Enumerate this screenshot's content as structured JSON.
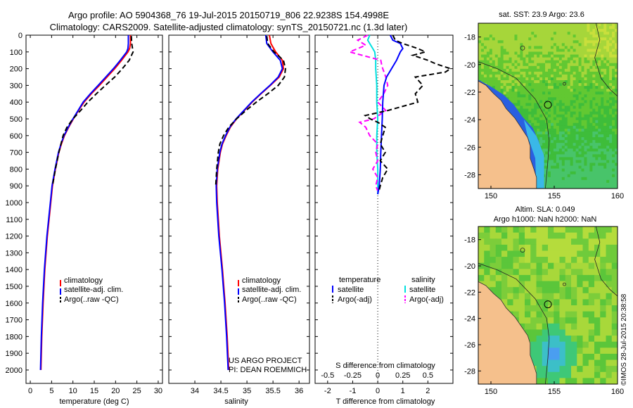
{
  "header": {
    "line1": "Argo profile: AO 5904368_76 19-Jul-2015 20150719_806 22.9238S 154.4998E",
    "line2": "Climatology: CARS2009. Satellite-adjusted climatology: synTS_20150721.nc (1.3d later)"
  },
  "side_note": "©IMOS 28-Jul-2015 20:38:58",
  "colors": {
    "clim": "#ff0000",
    "sat": "#0000ff",
    "argo": "#000000",
    "sal_sat": "#00e0e0",
    "sal_argo": "#ff00ff",
    "land": "#f5c08c"
  },
  "depth_axis": {
    "ticks": [
      0,
      100,
      200,
      300,
      400,
      500,
      600,
      700,
      800,
      900,
      1000,
      1100,
      1200,
      1300,
      1400,
      1500,
      1600,
      1700,
      1800,
      1900,
      2000
    ],
    "ylim": [
      0,
      2080
    ]
  },
  "chart_data": [
    {
      "type": "line",
      "id": "temperature",
      "xlabel": "temperature (deg C)",
      "xlim": [
        -1,
        31
      ],
      "xticks": [
        0,
        5,
        10,
        15,
        20,
        25,
        30
      ],
      "ylim": [
        2080,
        0
      ],
      "legend": [
        "climatology",
        "satellite-adj. clim.",
        "Argo(..raw -QC)"
      ],
      "series": [
        {
          "name": "climatology",
          "depth": [
            0,
            50,
            80,
            100,
            150,
            200,
            250,
            300,
            350,
            400,
            450,
            500,
            550,
            600,
            650,
            700,
            800,
            900,
            1000,
            1200,
            1400,
            1600,
            1800,
            2000
          ],
          "values": [
            23.5,
            23.5,
            23.3,
            22.9,
            21.4,
            19.8,
            18.0,
            16.2,
            14.3,
            12.6,
            11.3,
            10.1,
            9.0,
            8.0,
            7.3,
            6.7,
            5.9,
            5.2,
            4.8,
            4.0,
            3.4,
            3.0,
            2.7,
            2.5
          ]
        },
        {
          "name": "satellite-adj. clim.",
          "depth": [
            0,
            50,
            80,
            100,
            150,
            200,
            250,
            300,
            350,
            400,
            450,
            500,
            550,
            600,
            650,
            700,
            800,
            900,
            1000,
            1200,
            1400,
            1600,
            1800,
            2000
          ],
          "values": [
            23.0,
            23.0,
            22.9,
            22.6,
            21.1,
            19.5,
            17.7,
            15.9,
            14.1,
            12.4,
            11.2,
            10.0,
            8.9,
            7.9,
            7.2,
            6.6,
            5.8,
            5.1,
            4.7,
            3.9,
            3.3,
            2.9,
            2.6,
            2.4
          ]
        },
        {
          "name": "Argo(..raw -QC)",
          "depth": [
            5,
            50,
            100,
            150,
            200,
            250,
            300,
            350,
            400,
            450,
            500,
            550,
            600,
            650,
            700,
            800,
            900
          ],
          "values": [
            23.7,
            23.8,
            24.1,
            23.2,
            21.6,
            19.8,
            17.6,
            15.5,
            13.5,
            11.8,
            10.0,
            8.6,
            7.7,
            7.2,
            6.7,
            5.9,
            5.2
          ]
        }
      ],
      "legend_position": "lower-right",
      "annotations": []
    },
    {
      "type": "line",
      "id": "salinity",
      "xlabel": "salinity",
      "xlim": [
        33.5,
        36.2
      ],
      "xticks": [
        34,
        34.5,
        35,
        35.5,
        36
      ],
      "ylim": [
        2080,
        0
      ],
      "legend": [
        "climatology",
        "satellite-adj. clim.",
        "Argo(..raw -QC)"
      ],
      "series": [
        {
          "name": "climatology",
          "depth": [
            0,
            50,
            100,
            150,
            200,
            250,
            300,
            350,
            400,
            450,
            500,
            550,
            600,
            650,
            700,
            800,
            900,
            1000,
            1200,
            1400,
            1600,
            1800,
            2000
          ],
          "values": [
            35.43,
            35.46,
            35.55,
            35.68,
            35.7,
            35.62,
            35.45,
            35.27,
            35.1,
            34.95,
            34.8,
            34.68,
            34.6,
            34.53,
            34.49,
            34.44,
            34.42,
            34.43,
            34.47,
            34.53,
            34.58,
            34.62,
            34.65
          ]
        },
        {
          "name": "satellite-adj. clim.",
          "depth": [
            0,
            50,
            100,
            150,
            200,
            250,
            300,
            350,
            400,
            450,
            500,
            550,
            600,
            650,
            700,
            800,
            900,
            1000,
            1200,
            1400,
            1600,
            1800,
            2000
          ],
          "values": [
            35.36,
            35.38,
            35.5,
            35.64,
            35.68,
            35.6,
            35.44,
            35.26,
            35.09,
            34.94,
            34.79,
            34.67,
            34.59,
            34.52,
            34.48,
            34.43,
            34.41,
            34.42,
            34.46,
            34.52,
            34.57,
            34.61,
            34.64
          ]
        },
        {
          "name": "Argo(..raw -QC)",
          "depth": [
            5,
            50,
            100,
            150,
            200,
            250,
            300,
            350,
            400,
            450,
            500,
            550,
            600,
            650,
            700,
            800,
            900
          ],
          "values": [
            35.38,
            35.4,
            35.52,
            35.7,
            35.74,
            35.72,
            35.6,
            35.4,
            35.18,
            34.98,
            34.8,
            34.65,
            34.55,
            34.48,
            34.45,
            34.42,
            34.4
          ]
        }
      ],
      "legend_position": "lower-right",
      "annotations": [
        "US ARGO PROJECT",
        "PI: DEAN ROEMMICH"
      ]
    },
    {
      "type": "line",
      "id": "differences",
      "xlabel": "T difference from climatology",
      "xlabel_top": "S difference from climatology",
      "xlim": [
        -2.5,
        3.0
      ],
      "xticks": [
        -2,
        -1,
        0,
        1,
        2
      ],
      "s_xlim": [
        -0.625,
        0.75
      ],
      "s_xticks": [
        -0.5,
        -0.25,
        0,
        0.25,
        0.5
      ],
      "s_xtick_labels": [
        "-0.5",
        "-0.25",
        "0",
        "0.25",
        "0.5"
      ],
      "ylim": [
        2080,
        0
      ],
      "legend_temperature_title": "temperature",
      "legend_salinity_title": "salinity",
      "legend": [
        "satellite",
        "Argo(-adj)",
        "satellite",
        "Argo(-adj)"
      ],
      "series": [
        {
          "name": "T satellite",
          "unit": "degC",
          "depth": [
            0,
            30,
            50,
            80,
            100,
            150,
            200,
            250,
            300,
            400,
            500,
            600,
            700,
            800,
            900,
            950
          ],
          "values": [
            0.5,
            0.6,
            0.9,
            1.0,
            0.9,
            0.75,
            0.55,
            0.35,
            0.25,
            0.2,
            0.18,
            0.15,
            0.12,
            0.1,
            0.06,
            0.0
          ]
        },
        {
          "name": "T Argo(-adj)",
          "unit": "degC",
          "depth": [
            0,
            30,
            50,
            80,
            100,
            120,
            150,
            170,
            200,
            220,
            250,
            300,
            350,
            400,
            450,
            480,
            500,
            520,
            550,
            600,
            650,
            700,
            750,
            800,
            850,
            900,
            930
          ],
          "values": [
            0.6,
            0.7,
            1.0,
            1.6,
            1.9,
            1.4,
            2.0,
            2.3,
            2.9,
            2.7,
            1.5,
            1.8,
            1.5,
            1.6,
            0.4,
            -0.5,
            -0.3,
            0.0,
            0.3,
            0.2,
            0.1,
            0.3,
            0.1,
            0.4,
            0.2,
            0.1,
            0.05
          ]
        },
        {
          "name": "S satellite",
          "unit": "psu",
          "depth": [
            0,
            30,
            50,
            80,
            100,
            150,
            200,
            300,
            400,
            500,
            600,
            700,
            800,
            900,
            950
          ],
          "values": [
            -0.08,
            -0.1,
            -0.08,
            -0.05,
            -0.03,
            -0.02,
            -0.02,
            -0.01,
            -0.01,
            0.0,
            -0.01,
            -0.01,
            0.0,
            0.0,
            0.0
          ]
        },
        {
          "name": "S Argo(-adj)",
          "unit": "psu",
          "depth": [
            0,
            30,
            60,
            100,
            150,
            180,
            200,
            250,
            300,
            350,
            400,
            450,
            500,
            520,
            550,
            600,
            650,
            700,
            750,
            800,
            850,
            900,
            930
          ],
          "values": [
            -0.1,
            -0.2,
            -0.12,
            -0.28,
            0.03,
            0.04,
            0.05,
            0.08,
            0.1,
            0.06,
            0.0,
            0.08,
            -0.04,
            -0.18,
            -0.12,
            -0.08,
            0.0,
            -0.02,
            0.0,
            -0.05,
            0.0,
            -0.02,
            0.0
          ]
        }
      ],
      "legend_position": "lower-center",
      "annotations": []
    },
    {
      "type": "heatmap",
      "id": "sst_map",
      "title": "sat. SST: 23.9  Argo: 23.6",
      "xlim": [
        149,
        160
      ],
      "ylim": [
        -29,
        -17
      ],
      "xticks": [
        150,
        155,
        160
      ],
      "yticks": [
        -18,
        -20,
        -22,
        -24,
        -26,
        -28
      ],
      "argo_position": {
        "lon": 154.4998,
        "lat": -22.9238
      },
      "variable": "SST"
    },
    {
      "type": "heatmap",
      "id": "sla_map",
      "title_line1": "Altim. SLA: 0.049",
      "title_line2": "Argo h1000: NaN h2000: NaN",
      "xlim": [
        149,
        160
      ],
      "ylim": [
        -29,
        -17
      ],
      "xticks": [
        150,
        155,
        160
      ],
      "yticks": [
        -18,
        -20,
        -22,
        -24,
        -26,
        -28
      ],
      "argo_position": {
        "lon": 154.4998,
        "lat": -22.9238
      },
      "variable": "SLA"
    }
  ]
}
